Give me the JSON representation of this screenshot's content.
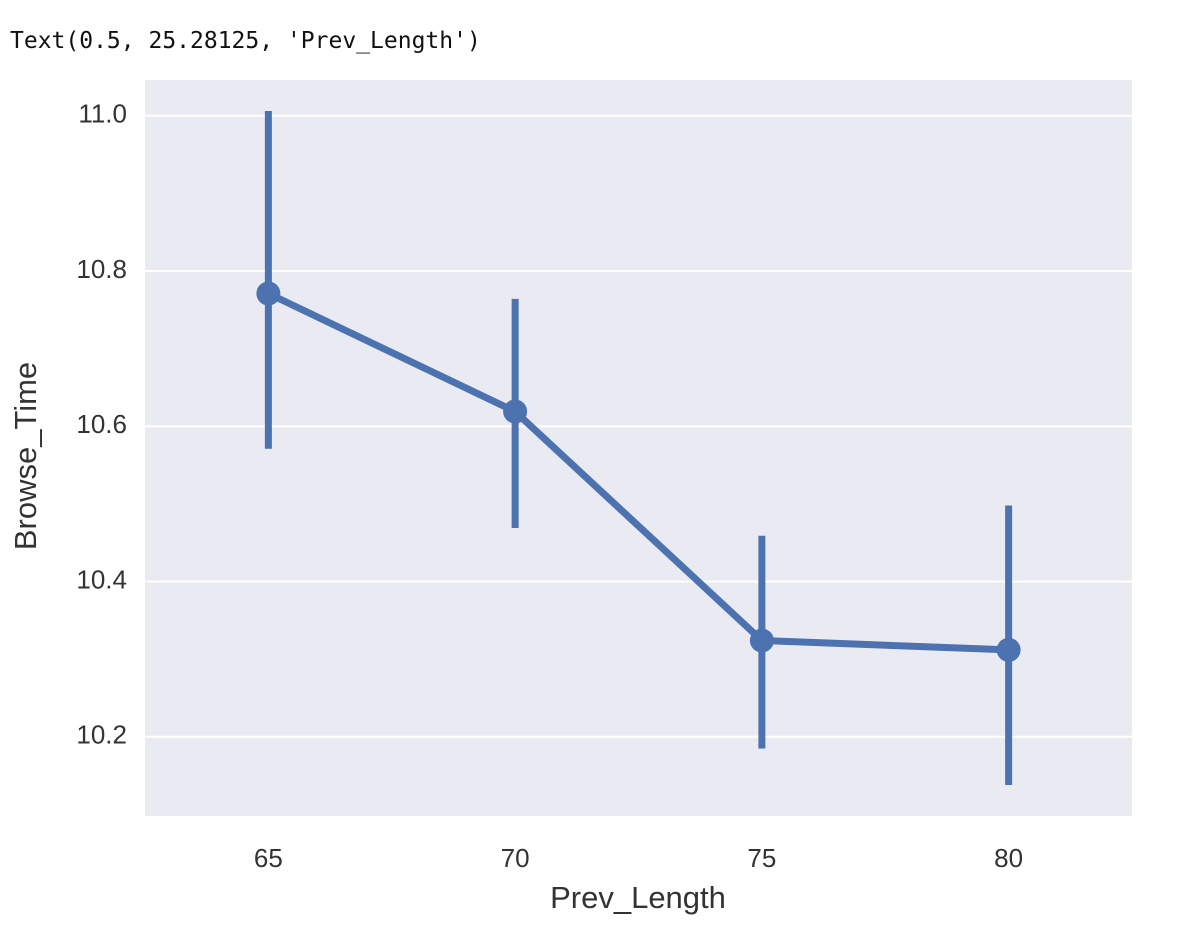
{
  "output_text": "Text(0.5, 25.28125, 'Prev_Length')",
  "chart_data": {
    "type": "pointplot",
    "xlabel": "Prev_Length",
    "ylabel": "Browse_Time",
    "categories": [
      65,
      70,
      75,
      80
    ],
    "values": [
      10.771,
      10.619,
      10.324,
      10.312
    ],
    "error_low": [
      10.571,
      10.469,
      10.185,
      10.138
    ],
    "error_high": [
      11.006,
      10.764,
      10.459,
      10.498
    ],
    "color": "#4c72b0",
    "ylim": [
      10.098,
      11.046
    ],
    "yticks": [
      10.2,
      10.4,
      10.6,
      10.8,
      {
        "value": 11,
        "label": "11.0"
      }
    ],
    "grid": true
  }
}
